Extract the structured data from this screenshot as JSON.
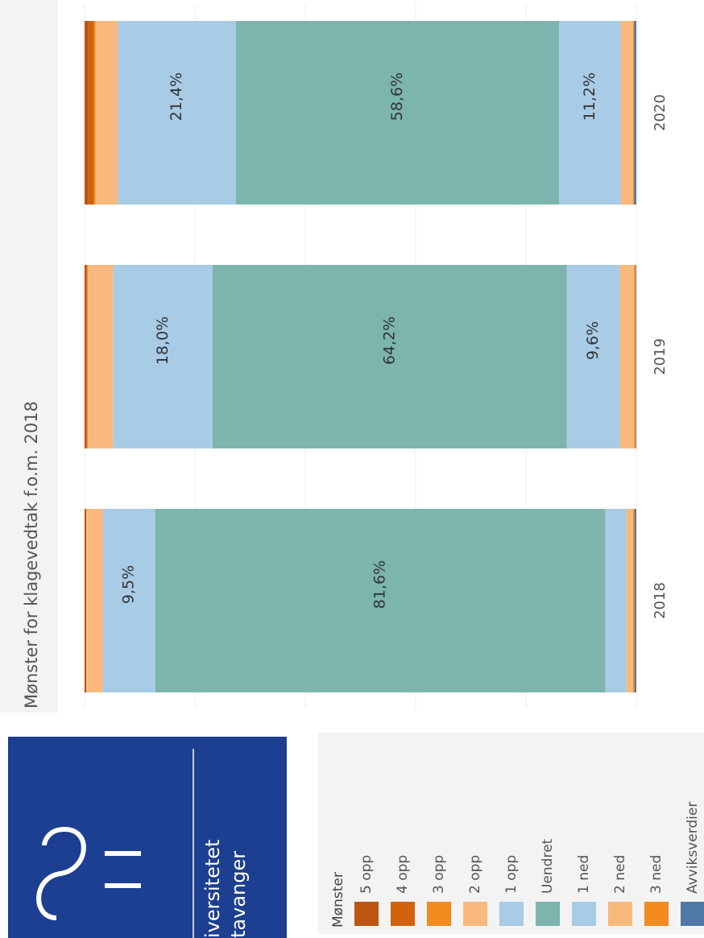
{
  "chart_data": {
    "type": "stacked_bar_100",
    "title": "Mønster for klagevedtak f.o.m. 2018",
    "categories": [
      "2018",
      "2019",
      "2020"
    ],
    "legend_title": "Mønster",
    "ylim": [
      0,
      100
    ],
    "gridlines": [
      0,
      20,
      40,
      60,
      80,
      100
    ],
    "series": [
      {
        "name": "5 opp",
        "color": "#bf5410",
        "values": [
          0.3,
          0.4,
          0.7
        ]
      },
      {
        "name": "4 opp",
        "color": "#d2620d",
        "values": [
          0,
          0,
          1.0
        ]
      },
      {
        "name": "3 opp",
        "color": "#f28a1e",
        "values": [
          0,
          0.2,
          0.3
        ]
      },
      {
        "name": "2 opp",
        "color": "#f9b97c",
        "values": [
          3.0,
          4.6,
          4.0
        ]
      },
      {
        "name": "1 opp",
        "color": "#a8cbe6",
        "values": [
          9.5,
          18.0,
          21.4
        ],
        "value_labels": [
          "9,5%",
          "18,0%",
          "21,4%"
        ]
      },
      {
        "name": "Uendret",
        "color": "#7bb5ae",
        "values": [
          81.6,
          64.2,
          58.6
        ],
        "value_labels": [
          "81,6%",
          "64,2%",
          "58,6%"
        ]
      },
      {
        "name": "1 ned",
        "color": "#a8cbe6",
        "values": [
          3.8,
          9.6,
          11.2
        ],
        "value_labels": [
          null,
          "9,6%",
          "11,2%"
        ]
      },
      {
        "name": "2 ned",
        "color": "#f9b97c",
        "values": [
          1.2,
          2.6,
          2.2
        ]
      },
      {
        "name": "3 ned",
        "color": "#f28a1e",
        "values": [
          0.3,
          0.3,
          0.2
        ]
      },
      {
        "name": "Avviksverdier",
        "color": "#4e79a7",
        "values": [
          0.3,
          0.1,
          0.4
        ]
      }
    ]
  },
  "logo": {
    "line1": "iversitetet",
    "line2": "tavanger"
  }
}
